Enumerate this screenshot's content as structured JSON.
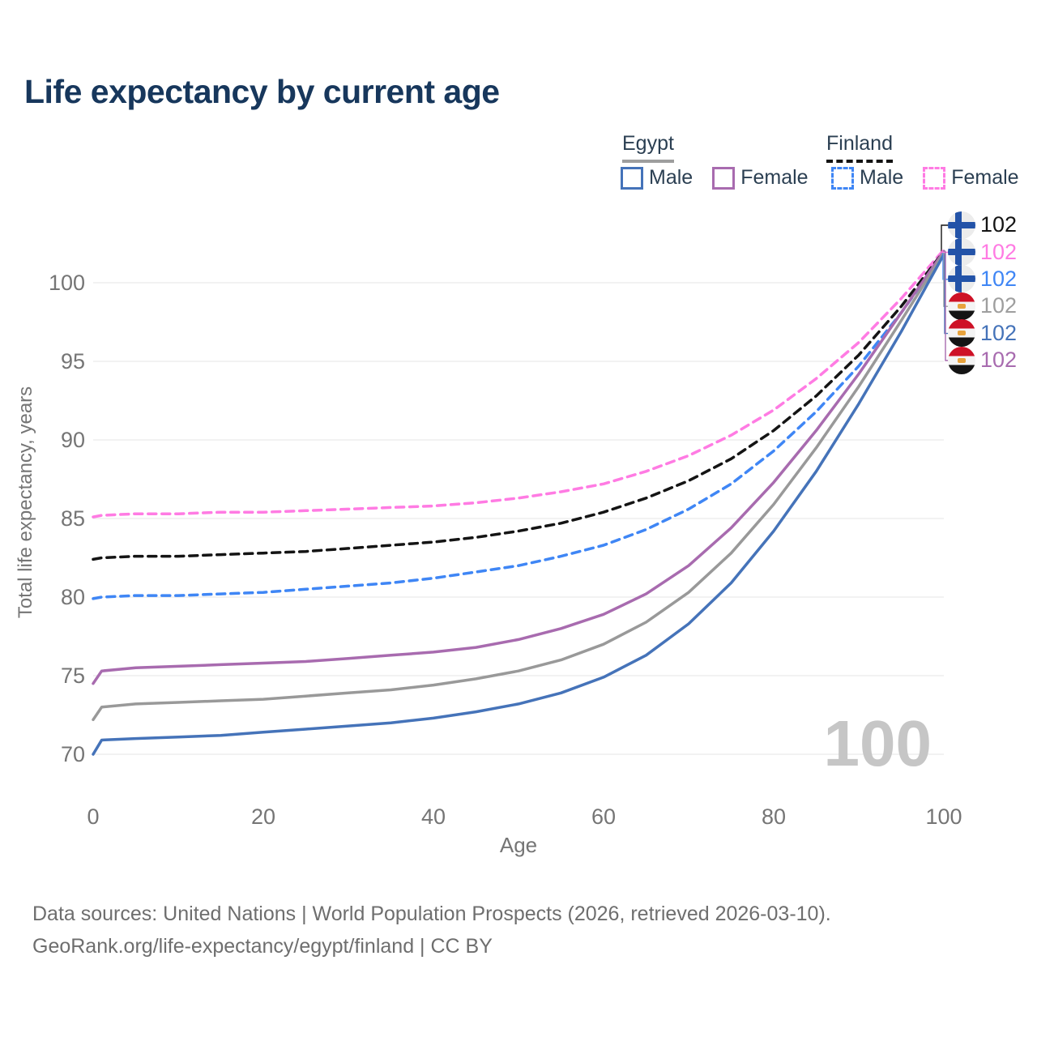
{
  "title": "Life expectancy by current age",
  "legend": {
    "groups": [
      {
        "country": "Egypt",
        "line_style": "solid",
        "header_line_color": "#9E9E9E",
        "items": [
          {
            "label": "Male",
            "color": "#4573B9"
          },
          {
            "label": "Female",
            "color": "#A86BAF"
          }
        ]
      },
      {
        "country": "Finland",
        "line_style": "dashed",
        "header_line_color": "#141414",
        "items": [
          {
            "label": "Male",
            "color": "#3F86F5"
          },
          {
            "label": "Female",
            "color": "#FF7BE3"
          }
        ]
      }
    ]
  },
  "chart_data": {
    "type": "line",
    "title": "Life expectancy by current age",
    "xlabel": "Age",
    "ylabel": "Total life expectancy, years",
    "xlim": [
      0,
      100
    ],
    "ylim": [
      69,
      103
    ],
    "xticks": [
      0,
      20,
      40,
      60,
      80,
      100
    ],
    "yticks": [
      70,
      75,
      80,
      85,
      90,
      95,
      100
    ],
    "grid": "horizontal",
    "legend_position": "top-right",
    "x": [
      0,
      1,
      5,
      10,
      15,
      20,
      25,
      30,
      35,
      40,
      45,
      50,
      55,
      60,
      65,
      70,
      75,
      80,
      85,
      90,
      95,
      100
    ],
    "series": [
      {
        "id": "finland_female",
        "name": "Finland Female",
        "color": "#FF7BE3",
        "dash": true,
        "values": [
          85.1,
          85.2,
          85.3,
          85.3,
          85.4,
          85.4,
          85.5,
          85.6,
          85.7,
          85.8,
          86.0,
          86.3,
          86.7,
          87.2,
          88.0,
          89.0,
          90.3,
          91.9,
          93.9,
          96.2,
          99.0,
          102.1
        ]
      },
      {
        "id": "finland_both",
        "name": "Finland (both sexes)",
        "color": "#141414",
        "dash": true,
        "values": [
          82.4,
          82.5,
          82.6,
          82.6,
          82.7,
          82.8,
          82.9,
          83.1,
          83.3,
          83.5,
          83.8,
          84.2,
          84.7,
          85.4,
          86.3,
          87.4,
          88.8,
          90.6,
          92.8,
          95.4,
          98.5,
          102.0
        ]
      },
      {
        "id": "finland_male",
        "name": "Finland Male",
        "color": "#3F86F5",
        "dash": true,
        "values": [
          79.9,
          80.0,
          80.1,
          80.1,
          80.2,
          80.3,
          80.5,
          80.7,
          80.9,
          81.2,
          81.6,
          82.0,
          82.6,
          83.3,
          84.3,
          85.6,
          87.2,
          89.3,
          91.8,
          94.7,
          98.1,
          101.9
        ]
      },
      {
        "id": "egypt_female",
        "name": "Egypt Female",
        "color": "#A86BAF",
        "dash": false,
        "values": [
          74.5,
          75.3,
          75.5,
          75.6,
          75.7,
          75.8,
          75.9,
          76.1,
          76.3,
          76.5,
          76.8,
          77.3,
          78.0,
          78.9,
          80.2,
          82.0,
          84.4,
          87.3,
          90.6,
          94.2,
          98.1,
          102.0
        ]
      },
      {
        "id": "egypt_both",
        "name": "Egypt (both sexes)",
        "color": "#999999",
        "dash": false,
        "values": [
          72.2,
          73.0,
          73.2,
          73.3,
          73.4,
          73.5,
          73.7,
          73.9,
          74.1,
          74.4,
          74.8,
          75.3,
          76.0,
          77.0,
          78.4,
          80.3,
          82.8,
          85.9,
          89.5,
          93.4,
          97.6,
          101.9
        ]
      },
      {
        "id": "egypt_male",
        "name": "Egypt Male",
        "color": "#4573B9",
        "dash": false,
        "values": [
          70.0,
          70.9,
          71.0,
          71.1,
          71.2,
          71.4,
          71.6,
          71.8,
          72.0,
          72.3,
          72.7,
          73.2,
          73.9,
          74.9,
          76.3,
          78.3,
          80.9,
          84.2,
          88.0,
          92.3,
          96.9,
          101.8
        ]
      }
    ]
  },
  "end_labels": [
    {
      "series": "finland_both",
      "flag": "finland",
      "value": "102",
      "color": "#141414"
    },
    {
      "series": "finland_female",
      "flag": "finland",
      "value": "102",
      "color": "#FF7BE3"
    },
    {
      "series": "finland_male",
      "flag": "finland",
      "value": "102",
      "color": "#3F86F5"
    },
    {
      "series": "egypt_both",
      "flag": "egypt",
      "value": "102",
      "color": "#9E9E9E"
    },
    {
      "series": "egypt_male",
      "flag": "egypt",
      "value": "102",
      "color": "#4573B9"
    },
    {
      "series": "egypt_female",
      "flag": "egypt",
      "value": "102",
      "color": "#A86BAF"
    }
  ],
  "watermark": "100",
  "footer": {
    "line1": "Data sources: United Nations | World Population Prospects (2026, retrieved 2026-03-10).",
    "line2": "GeoRank.org/life-expectancy/egypt/finland | CC BY"
  }
}
